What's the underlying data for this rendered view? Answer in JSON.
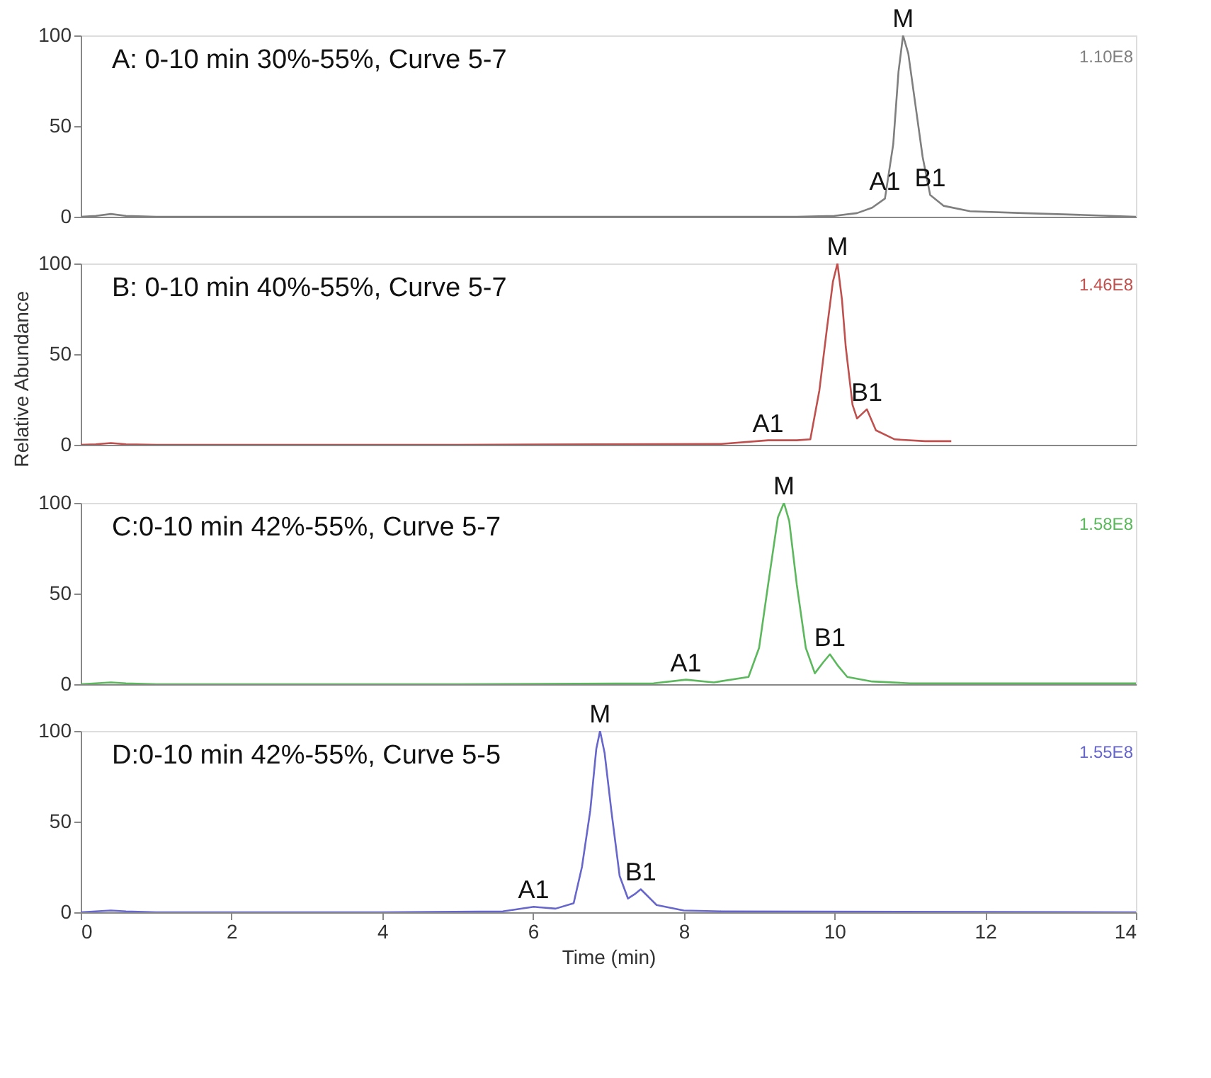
{
  "chart_data": [
    {
      "type": "line",
      "xlim": [
        0,
        14
      ],
      "ylim": [
        0,
        100
      ],
      "yticks": [
        0,
        50,
        100
      ],
      "tick_labels": "y",
      "grid": false,
      "series": [
        {
          "color": "#7f7f7f",
          "x": [
            0,
            0.2,
            0.4,
            0.6,
            1,
            5,
            9.5,
            10.0,
            10.3,
            10.5,
            10.67,
            10.78,
            10.85,
            10.91,
            10.98,
            11.08,
            11.17,
            11.27,
            11.45,
            11.8,
            12.5,
            13.3,
            14
          ],
          "values": [
            0,
            0.5,
            1.5,
            0.5,
            0,
            0,
            0,
            0.5,
            2,
            5,
            10,
            40,
            80,
            100,
            90,
            60,
            33,
            12,
            6,
            3,
            2,
            1,
            0
          ]
        }
      ],
      "annotations": [
        "A: 0-10 min 30%-55%, Curve 5-7",
        "1.10E8",
        {
          "text": "M",
          "x": 10.91,
          "y": 100
        },
        {
          "text": "A1",
          "x": 10.67,
          "y": 10
        },
        {
          "text": "B1",
          "x": 11.27,
          "y": 12
        }
      ]
    },
    {
      "type": "line",
      "xlim": [
        0,
        14
      ],
      "ylim": [
        0,
        100
      ],
      "yticks": [
        0,
        50,
        100
      ],
      "tick_labels": "y",
      "grid": false,
      "ylabel": "Relative Abundance",
      "series": [
        {
          "color": "#c0504d",
          "x": [
            0,
            0.2,
            0.4,
            0.6,
            1,
            5,
            8.5,
            9.12,
            9.5,
            9.68,
            9.8,
            9.9,
            9.98,
            10.04,
            10.1,
            10.15,
            10.24,
            10.3,
            10.43,
            10.55,
            10.8,
            11.2,
            11.55
          ],
          "values": [
            0,
            0.3,
            1,
            0.3,
            0,
            0,
            0.5,
            2.5,
            2.5,
            3,
            30,
            64,
            90,
            100,
            80,
            54,
            22,
            14.5,
            19.6,
            8,
            3,
            2,
            2
          ]
        }
      ],
      "annotations": [
        "B: 0-10 min 40%-55%, Curve 5-7",
        "1.46E8",
        {
          "text": "M",
          "x": 10.04,
          "y": 100
        },
        {
          "text": "A1",
          "x": 9.12,
          "y": 2.5
        },
        {
          "text": "B1",
          "x": 10.43,
          "y": 19.6
        }
      ]
    },
    {
      "type": "line",
      "xlim": [
        0,
        14
      ],
      "ylim": [
        0,
        100
      ],
      "yticks": [
        0,
        50,
        100
      ],
      "tick_labels": "y",
      "grid": false,
      "series": [
        {
          "color": "#5cb85c",
          "x": [
            0,
            0.2,
            0.4,
            0.6,
            1,
            5,
            7.6,
            8.03,
            8.4,
            8.86,
            9.0,
            9.12,
            9.25,
            9.33,
            9.4,
            9.5,
            9.62,
            9.74,
            9.85,
            9.94,
            10.05,
            10.17,
            10.5,
            11,
            14
          ],
          "values": [
            0,
            0.5,
            1,
            0.5,
            0,
            0,
            0.5,
            2.5,
            1,
            4,
            20,
            55,
            92,
            100,
            90,
            55,
            20,
            6,
            12,
            16.5,
            10,
            4,
            1.5,
            0.5,
            0.5
          ]
        }
      ],
      "annotations": [
        "C:0-10 min 42%-55%, Curve 5-7",
        "1.58E8",
        {
          "text": "M",
          "x": 9.33,
          "y": 100
        },
        {
          "text": "A1",
          "x": 8.03,
          "y": 2.5
        },
        {
          "text": "B1",
          "x": 9.94,
          "y": 16.5
        }
      ]
    },
    {
      "type": "line",
      "xlim": [
        0,
        14
      ],
      "ylim": [
        0,
        100
      ],
      "yticks": [
        0,
        50,
        100
      ],
      "xticks": [
        0,
        2,
        4,
        6,
        8,
        10,
        12,
        14
      ],
      "grid": false,
      "xlabel": "Time (min)",
      "series": [
        {
          "color": "#6666cc",
          "x": [
            0,
            0.2,
            0.4,
            0.6,
            1,
            4,
            5.6,
            6.01,
            6.3,
            6.54,
            6.65,
            6.76,
            6.84,
            6.89,
            6.95,
            7.04,
            7.15,
            7.26,
            7.35,
            7.43,
            7.52,
            7.64,
            8.0,
            8.5,
            14
          ],
          "values": [
            0,
            0.5,
            1,
            0.5,
            0,
            0,
            0.5,
            3,
            2,
            5,
            25,
            56,
            90,
            100,
            88,
            56,
            20,
            7.6,
            10,
            12.7,
            9,
            4,
            1,
            0.5,
            0
          ]
        }
      ],
      "annotations": [
        "D:0-10 min 42%-55%, Curve 5-5",
        "1.55E8",
        {
          "text": "M",
          "x": 6.89,
          "y": 100
        },
        {
          "text": "A1",
          "x": 6.01,
          "y": 3
        },
        {
          "text": "B1",
          "x": 7.43,
          "y": 12.7
        }
      ]
    }
  ]
}
